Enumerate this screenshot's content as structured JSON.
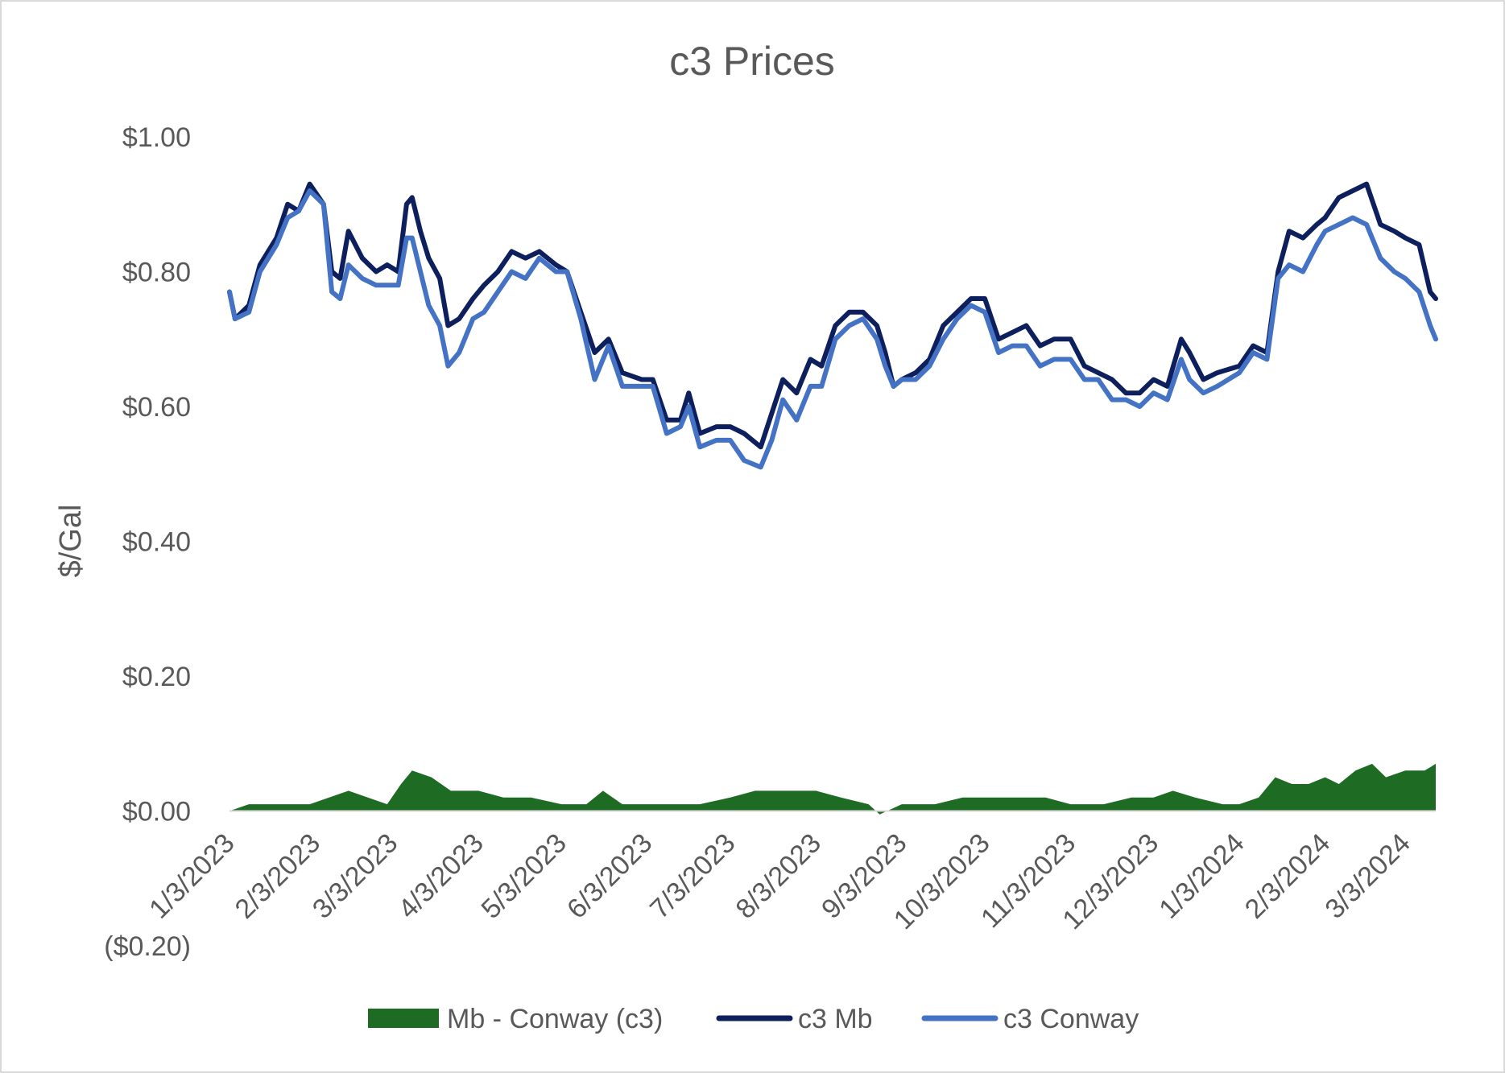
{
  "chart_data": {
    "type": "line",
    "title": "c3 Prices",
    "ylabel": "$/Gal",
    "xlabel": "",
    "ylim": [
      -0.2,
      1.0
    ],
    "y_ticks": [
      "($0.20)",
      "$0.00",
      "$0.20",
      "$0.40",
      "$0.60",
      "$0.80",
      "$1.00"
    ],
    "x_ticks": [
      "1/3/2023",
      "2/3/2023",
      "3/3/2023",
      "4/3/2023",
      "5/3/2023",
      "6/3/2023",
      "7/3/2023",
      "8/3/2023",
      "9/3/2023",
      "10/3/2023",
      "11/3/2023",
      "12/3/2023",
      "1/3/2024",
      "2/3/2024",
      "3/3/2024"
    ],
    "legend_position": "bottom",
    "grid": false,
    "series": [
      {
        "name": "Mb - Conway (c3)",
        "kind": "area",
        "color": "#1e6b24",
        "points": [
          [
            "1/3/2023",
            0.0
          ],
          [
            "1/10/2023",
            0.01
          ],
          [
            "1/18/2023",
            0.01
          ],
          [
            "1/25/2023",
            0.01
          ],
          [
            "2/1/2023",
            0.01
          ],
          [
            "2/8/2023",
            0.02
          ],
          [
            "2/15/2023",
            0.03
          ],
          [
            "2/22/2023",
            0.02
          ],
          [
            "3/1/2023",
            0.01
          ],
          [
            "3/6/2023",
            0.04
          ],
          [
            "3/10/2023",
            0.06
          ],
          [
            "3/17/2023",
            0.05
          ],
          [
            "3/24/2023",
            0.03
          ],
          [
            "4/3/2023",
            0.03
          ],
          [
            "4/12/2023",
            0.02
          ],
          [
            "4/22/2023",
            0.02
          ],
          [
            "5/3/2023",
            0.01
          ],
          [
            "5/12/2023",
            0.01
          ],
          [
            "5/18/2023",
            0.03
          ],
          [
            "5/25/2023",
            0.01
          ],
          [
            "6/3/2023",
            0.01
          ],
          [
            "6/12/2023",
            0.01
          ],
          [
            "6/22/2023",
            0.01
          ],
          [
            "7/3/2023",
            0.02
          ],
          [
            "7/12/2023",
            0.03
          ],
          [
            "7/22/2023",
            0.03
          ],
          [
            "8/3/2023",
            0.03
          ],
          [
            "8/12/2023",
            0.02
          ],
          [
            "8/22/2023",
            0.01
          ],
          [
            "8/26/2023",
            -0.005
          ],
          [
            "9/3/2023",
            0.01
          ],
          [
            "9/15/2023",
            0.01
          ],
          [
            "9/25/2023",
            0.02
          ],
          [
            "10/3/2023",
            0.02
          ],
          [
            "10/15/2023",
            0.02
          ],
          [
            "10/25/2023",
            0.02
          ],
          [
            "11/3/2023",
            0.01
          ],
          [
            "11/15/2023",
            0.01
          ],
          [
            "11/25/2023",
            0.02
          ],
          [
            "12/3/2023",
            0.02
          ],
          [
            "12/10/2023",
            0.03
          ],
          [
            "12/18/2023",
            0.02
          ],
          [
            "12/28/2023",
            0.01
          ],
          [
            "1/3/2024",
            0.01
          ],
          [
            "1/10/2024",
            0.02
          ],
          [
            "1/16/2024",
            0.05
          ],
          [
            "1/22/2024",
            0.04
          ],
          [
            "1/28/2024",
            0.04
          ],
          [
            "2/3/2024",
            0.05
          ],
          [
            "2/8/2024",
            0.04
          ],
          [
            "2/14/2024",
            0.06
          ],
          [
            "2/20/2024",
            0.07
          ],
          [
            "2/25/2024",
            0.05
          ],
          [
            "3/3/2024",
            0.06
          ],
          [
            "3/10/2024",
            0.06
          ],
          [
            "3/14/2024",
            0.07
          ]
        ]
      },
      {
        "name": "c3 Mb",
        "kind": "line",
        "color": "#0d1f5c",
        "points": [
          [
            "1/3/2023",
            0.77
          ],
          [
            "1/5/2023",
            0.73
          ],
          [
            "1/10/2023",
            0.75
          ],
          [
            "1/14/2023",
            0.81
          ],
          [
            "1/20/2023",
            0.85
          ],
          [
            "1/24/2023",
            0.9
          ],
          [
            "1/28/2023",
            0.89
          ],
          [
            "2/1/2023",
            0.93
          ],
          [
            "2/6/2023",
            0.9
          ],
          [
            "2/9/2023",
            0.8
          ],
          [
            "2/12/2023",
            0.79
          ],
          [
            "2/15/2023",
            0.86
          ],
          [
            "2/20/2023",
            0.82
          ],
          [
            "2/25/2023",
            0.8
          ],
          [
            "3/1/2023",
            0.81
          ],
          [
            "3/5/2023",
            0.8
          ],
          [
            "3/8/2023",
            0.9
          ],
          [
            "3/10/2023",
            0.91
          ],
          [
            "3/13/2023",
            0.86
          ],
          [
            "3/16/2023",
            0.82
          ],
          [
            "3/20/2023",
            0.79
          ],
          [
            "3/23/2023",
            0.72
          ],
          [
            "3/27/2023",
            0.73
          ],
          [
            "4/1/2023",
            0.76
          ],
          [
            "4/5/2023",
            0.78
          ],
          [
            "4/10/2023",
            0.8
          ],
          [
            "4/15/2023",
            0.83
          ],
          [
            "4/20/2023",
            0.82
          ],
          [
            "4/25/2023",
            0.83
          ],
          [
            "5/1/2023",
            0.81
          ],
          [
            "5/5/2023",
            0.8
          ],
          [
            "5/10/2023",
            0.74
          ],
          [
            "5/15/2023",
            0.68
          ],
          [
            "5/20/2023",
            0.7
          ],
          [
            "5/25/2023",
            0.65
          ],
          [
            "6/1/2023",
            0.64
          ],
          [
            "6/5/2023",
            0.64
          ],
          [
            "6/10/2023",
            0.58
          ],
          [
            "6/15/2023",
            0.58
          ],
          [
            "6/18/2023",
            0.62
          ],
          [
            "6/22/2023",
            0.56
          ],
          [
            "6/28/2023",
            0.57
          ],
          [
            "7/3/2023",
            0.57
          ],
          [
            "7/8/2023",
            0.56
          ],
          [
            "7/14/2023",
            0.54
          ],
          [
            "7/18/2023",
            0.59
          ],
          [
            "7/22/2023",
            0.64
          ],
          [
            "7/27/2023",
            0.62
          ],
          [
            "8/1/2023",
            0.67
          ],
          [
            "8/5/2023",
            0.66
          ],
          [
            "8/10/2023",
            0.72
          ],
          [
            "8/15/2023",
            0.74
          ],
          [
            "8/20/2023",
            0.74
          ],
          [
            "8/25/2023",
            0.72
          ],
          [
            "8/28/2023",
            0.68
          ],
          [
            "8/31/2023",
            0.63
          ],
          [
            "9/3/2023",
            0.64
          ],
          [
            "9/8/2023",
            0.65
          ],
          [
            "9/13/2023",
            0.67
          ],
          [
            "9/18/2023",
            0.72
          ],
          [
            "9/23/2023",
            0.74
          ],
          [
            "9/28/2023",
            0.76
          ],
          [
            "10/3/2023",
            0.76
          ],
          [
            "10/8/2023",
            0.7
          ],
          [
            "10/13/2023",
            0.71
          ],
          [
            "10/18/2023",
            0.72
          ],
          [
            "10/23/2023",
            0.69
          ],
          [
            "10/28/2023",
            0.7
          ],
          [
            "11/3/2023",
            0.7
          ],
          [
            "11/8/2023",
            0.66
          ],
          [
            "11/13/2023",
            0.65
          ],
          [
            "11/18/2023",
            0.64
          ],
          [
            "11/23/2023",
            0.62
          ],
          [
            "11/28/2023",
            0.62
          ],
          [
            "12/3/2023",
            0.64
          ],
          [
            "12/8/2023",
            0.63
          ],
          [
            "12/13/2023",
            0.7
          ],
          [
            "12/16/2023",
            0.68
          ],
          [
            "12/21/2023",
            0.64
          ],
          [
            "12/26/2023",
            0.65
          ],
          [
            "1/3/2024",
            0.66
          ],
          [
            "1/8/2024",
            0.69
          ],
          [
            "1/13/2024",
            0.68
          ],
          [
            "1/17/2024",
            0.8
          ],
          [
            "1/21/2024",
            0.86
          ],
          [
            "1/26/2024",
            0.85
          ],
          [
            "1/31/2024",
            0.87
          ],
          [
            "2/3/2024",
            0.88
          ],
          [
            "2/8/2024",
            0.91
          ],
          [
            "2/13/2024",
            0.92
          ],
          [
            "2/18/2024",
            0.93
          ],
          [
            "2/23/2024",
            0.87
          ],
          [
            "2/28/2024",
            0.86
          ],
          [
            "3/3/2024",
            0.85
          ],
          [
            "3/8/2024",
            0.84
          ],
          [
            "3/12/2024",
            0.77
          ],
          [
            "3/14/2024",
            0.76
          ]
        ]
      },
      {
        "name": "c3 Conway",
        "kind": "line",
        "color": "#4472c4",
        "points": [
          [
            "1/3/2023",
            0.77
          ],
          [
            "1/5/2023",
            0.73
          ],
          [
            "1/10/2023",
            0.74
          ],
          [
            "1/14/2023",
            0.8
          ],
          [
            "1/20/2023",
            0.84
          ],
          [
            "1/24/2023",
            0.88
          ],
          [
            "1/28/2023",
            0.89
          ],
          [
            "2/1/2023",
            0.92
          ],
          [
            "2/6/2023",
            0.9
          ],
          [
            "2/9/2023",
            0.77
          ],
          [
            "2/12/2023",
            0.76
          ],
          [
            "2/15/2023",
            0.81
          ],
          [
            "2/20/2023",
            0.79
          ],
          [
            "2/25/2023",
            0.78
          ],
          [
            "3/1/2023",
            0.78
          ],
          [
            "3/5/2023",
            0.78
          ],
          [
            "3/8/2023",
            0.85
          ],
          [
            "3/10/2023",
            0.85
          ],
          [
            "3/13/2023",
            0.8
          ],
          [
            "3/16/2023",
            0.75
          ],
          [
            "3/20/2023",
            0.72
          ],
          [
            "3/23/2023",
            0.66
          ],
          [
            "3/27/2023",
            0.68
          ],
          [
            "4/1/2023",
            0.73
          ],
          [
            "4/5/2023",
            0.74
          ],
          [
            "4/10/2023",
            0.77
          ],
          [
            "4/15/2023",
            0.8
          ],
          [
            "4/20/2023",
            0.79
          ],
          [
            "4/25/2023",
            0.82
          ],
          [
            "5/1/2023",
            0.8
          ],
          [
            "5/5/2023",
            0.8
          ],
          [
            "5/10/2023",
            0.73
          ],
          [
            "5/15/2023",
            0.64
          ],
          [
            "5/20/2023",
            0.69
          ],
          [
            "5/25/2023",
            0.63
          ],
          [
            "6/1/2023",
            0.63
          ],
          [
            "6/5/2023",
            0.63
          ],
          [
            "6/10/2023",
            0.56
          ],
          [
            "6/15/2023",
            0.57
          ],
          [
            "6/18/2023",
            0.6
          ],
          [
            "6/22/2023",
            0.54
          ],
          [
            "6/28/2023",
            0.55
          ],
          [
            "7/3/2023",
            0.55
          ],
          [
            "7/8/2023",
            0.52
          ],
          [
            "7/14/2023",
            0.51
          ],
          [
            "7/18/2023",
            0.55
          ],
          [
            "7/22/2023",
            0.61
          ],
          [
            "7/27/2023",
            0.58
          ],
          [
            "8/1/2023",
            0.63
          ],
          [
            "8/5/2023",
            0.63
          ],
          [
            "8/10/2023",
            0.7
          ],
          [
            "8/15/2023",
            0.72
          ],
          [
            "8/20/2023",
            0.73
          ],
          [
            "8/25/2023",
            0.7
          ],
          [
            "8/28/2023",
            0.66
          ],
          [
            "8/31/2023",
            0.63
          ],
          [
            "9/3/2023",
            0.64
          ],
          [
            "9/8/2023",
            0.64
          ],
          [
            "9/13/2023",
            0.66
          ],
          [
            "9/18/2023",
            0.7
          ],
          [
            "9/23/2023",
            0.73
          ],
          [
            "9/28/2023",
            0.75
          ],
          [
            "10/3/2023",
            0.74
          ],
          [
            "10/8/2023",
            0.68
          ],
          [
            "10/13/2023",
            0.69
          ],
          [
            "10/18/2023",
            0.69
          ],
          [
            "10/23/2023",
            0.66
          ],
          [
            "10/28/2023",
            0.67
          ],
          [
            "11/3/2023",
            0.67
          ],
          [
            "11/8/2023",
            0.64
          ],
          [
            "11/13/2023",
            0.64
          ],
          [
            "11/18/2023",
            0.61
          ],
          [
            "11/23/2023",
            0.61
          ],
          [
            "11/28/2023",
            0.6
          ],
          [
            "12/3/2023",
            0.62
          ],
          [
            "12/8/2023",
            0.61
          ],
          [
            "12/13/2023",
            0.67
          ],
          [
            "12/16/2023",
            0.64
          ],
          [
            "12/21/2023",
            0.62
          ],
          [
            "12/26/2023",
            0.63
          ],
          [
            "1/3/2024",
            0.65
          ],
          [
            "1/8/2024",
            0.68
          ],
          [
            "1/13/2024",
            0.67
          ],
          [
            "1/17/2024",
            0.79
          ],
          [
            "1/21/2024",
            0.81
          ],
          [
            "1/26/2024",
            0.8
          ],
          [
            "1/31/2024",
            0.84
          ],
          [
            "2/3/2024",
            0.86
          ],
          [
            "2/8/2024",
            0.87
          ],
          [
            "2/13/2024",
            0.88
          ],
          [
            "2/18/2024",
            0.87
          ],
          [
            "2/23/2024",
            0.82
          ],
          [
            "2/28/2024",
            0.8
          ],
          [
            "3/3/2024",
            0.79
          ],
          [
            "3/8/2024",
            0.77
          ],
          [
            "3/12/2024",
            0.72
          ],
          [
            "3/14/2024",
            0.7
          ]
        ]
      }
    ]
  }
}
